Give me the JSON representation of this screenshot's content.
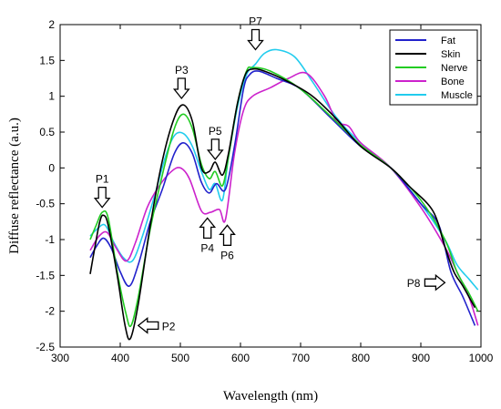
{
  "chart_data": {
    "type": "line",
    "title": "",
    "xlabel": "Wavelength (nm)",
    "ylabel": "Diffuse reflectance (a.u.)",
    "xlim": [
      300,
      1000
    ],
    "ylim": [
      -2.5,
      2
    ],
    "xticks": [
      "300",
      "400",
      "500",
      "600",
      "700",
      "800",
      "900",
      "1000"
    ],
    "yticks": [
      "-2.5",
      "-2",
      "-1.5",
      "-1",
      "-0.5",
      "0",
      "0.5",
      "1",
      "1.5",
      "2"
    ],
    "legend_position": "top-right",
    "grid": false,
    "series": [
      {
        "name": "Fat",
        "color": "#2222cc",
        "points": [
          [
            350,
            -1.25
          ],
          [
            360,
            -1.1
          ],
          [
            372,
            -0.98
          ],
          [
            385,
            -1.12
          ],
          [
            400,
            -1.45
          ],
          [
            415,
            -1.65
          ],
          [
            430,
            -1.35
          ],
          [
            450,
            -0.75
          ],
          [
            470,
            -0.3
          ],
          [
            490,
            0.2
          ],
          [
            505,
            0.35
          ],
          [
            520,
            0.2
          ],
          [
            535,
            -0.2
          ],
          [
            548,
            -0.35
          ],
          [
            560,
            -0.22
          ],
          [
            575,
            -0.3
          ],
          [
            590,
            0.3
          ],
          [
            605,
            1.1
          ],
          [
            615,
            1.3
          ],
          [
            630,
            1.35
          ],
          [
            660,
            1.25
          ],
          [
            700,
            1.1
          ],
          [
            750,
            0.7
          ],
          [
            800,
            0.3
          ],
          [
            850,
            0.0
          ],
          [
            900,
            -0.5
          ],
          [
            930,
            -0.8
          ],
          [
            950,
            -1.45
          ],
          [
            970,
            -1.8
          ],
          [
            990,
            -2.2
          ]
        ]
      },
      {
        "name": "Skin",
        "color": "#000000",
        "points": [
          [
            350,
            -1.48
          ],
          [
            358,
            -1.1
          ],
          [
            366,
            -0.75
          ],
          [
            372,
            -0.66
          ],
          [
            380,
            -0.8
          ],
          [
            395,
            -1.5
          ],
          [
            408,
            -2.2
          ],
          [
            417,
            -2.38
          ],
          [
            430,
            -1.9
          ],
          [
            450,
            -0.8
          ],
          [
            470,
            0.1
          ],
          [
            490,
            0.7
          ],
          [
            505,
            0.88
          ],
          [
            520,
            0.65
          ],
          [
            535,
            0.0
          ],
          [
            548,
            -0.05
          ],
          [
            558,
            0.08
          ],
          [
            570,
            -0.1
          ],
          [
            580,
            0.2
          ],
          [
            595,
            0.9
          ],
          [
            608,
            1.3
          ],
          [
            620,
            1.38
          ],
          [
            640,
            1.35
          ],
          [
            680,
            1.2
          ],
          [
            720,
            1.0
          ],
          [
            760,
            0.68
          ],
          [
            800,
            0.3
          ],
          [
            850,
            0.0
          ],
          [
            880,
            -0.25
          ],
          [
            920,
            -0.6
          ],
          [
            940,
            -1.1
          ],
          [
            955,
            -1.45
          ],
          [
            970,
            -1.65
          ],
          [
            990,
            -1.95
          ]
        ]
      },
      {
        "name": "Nerve",
        "color": "#22cc22",
        "points": [
          [
            350,
            -1.0
          ],
          [
            360,
            -0.8
          ],
          [
            370,
            -0.62
          ],
          [
            380,
            -0.7
          ],
          [
            395,
            -1.45
          ],
          [
            410,
            -2.05
          ],
          [
            418,
            -2.2
          ],
          [
            430,
            -1.8
          ],
          [
            450,
            -0.85
          ],
          [
            470,
            -0.1
          ],
          [
            490,
            0.55
          ],
          [
            505,
            0.75
          ],
          [
            520,
            0.55
          ],
          [
            535,
            0.05
          ],
          [
            548,
            -0.15
          ],
          [
            558,
            -0.05
          ],
          [
            570,
            -0.25
          ],
          [
            580,
            0.15
          ],
          [
            595,
            0.9
          ],
          [
            610,
            1.35
          ],
          [
            620,
            1.4
          ],
          [
            650,
            1.35
          ],
          [
            700,
            1.1
          ],
          [
            750,
            0.72
          ],
          [
            800,
            0.32
          ],
          [
            850,
            0.0
          ],
          [
            900,
            -0.45
          ],
          [
            940,
            -1.0
          ],
          [
            960,
            -1.45
          ],
          [
            980,
            -1.75
          ],
          [
            995,
            -2.0
          ]
        ]
      },
      {
        "name": "Bone",
        "color": "#cc22cc",
        "points": [
          [
            350,
            -1.15
          ],
          [
            365,
            -0.95
          ],
          [
            378,
            -0.9
          ],
          [
            392,
            -1.1
          ],
          [
            410,
            -1.3
          ],
          [
            425,
            -1.05
          ],
          [
            445,
            -0.55
          ],
          [
            465,
            -0.25
          ],
          [
            485,
            -0.05
          ],
          [
            500,
            0.0
          ],
          [
            515,
            -0.15
          ],
          [
            535,
            -0.6
          ],
          [
            550,
            -0.62
          ],
          [
            565,
            -0.58
          ],
          [
            575,
            -0.72
          ],
          [
            590,
            0.2
          ],
          [
            605,
            0.8
          ],
          [
            620,
            1.0
          ],
          [
            650,
            1.12
          ],
          [
            680,
            1.25
          ],
          [
            710,
            1.32
          ],
          [
            740,
            1.0
          ],
          [
            760,
            0.65
          ],
          [
            780,
            0.58
          ],
          [
            800,
            0.35
          ],
          [
            850,
            0.0
          ],
          [
            900,
            -0.55
          ],
          [
            940,
            -1.1
          ],
          [
            960,
            -1.45
          ],
          [
            980,
            -1.8
          ],
          [
            995,
            -2.2
          ]
        ]
      },
      {
        "name": "Muscle",
        "color": "#22ccee",
        "points": [
          [
            350,
            -0.95
          ],
          [
            362,
            -0.85
          ],
          [
            375,
            -0.8
          ],
          [
            390,
            -1.05
          ],
          [
            405,
            -1.25
          ],
          [
            420,
            -1.3
          ],
          [
            435,
            -1.0
          ],
          [
            455,
            -0.45
          ],
          [
            475,
            0.15
          ],
          [
            490,
            0.45
          ],
          [
            505,
            0.48
          ],
          [
            520,
            0.3
          ],
          [
            535,
            -0.05
          ],
          [
            548,
            -0.3
          ],
          [
            558,
            -0.22
          ],
          [
            570,
            -0.45
          ],
          [
            580,
            0.15
          ],
          [
            595,
            0.85
          ],
          [
            610,
            1.3
          ],
          [
            625,
            1.45
          ],
          [
            640,
            1.6
          ],
          [
            660,
            1.65
          ],
          [
            690,
            1.55
          ],
          [
            720,
            1.2
          ],
          [
            760,
            0.7
          ],
          [
            800,
            0.35
          ],
          [
            850,
            0.0
          ],
          [
            900,
            -0.5
          ],
          [
            940,
            -1.0
          ],
          [
            960,
            -1.35
          ],
          [
            980,
            -1.55
          ],
          [
            995,
            -1.7
          ]
        ]
      }
    ],
    "annotations": [
      {
        "label": "P1",
        "x": 370,
        "y": -0.55,
        "arrow": "down"
      },
      {
        "label": "P2",
        "x": 430,
        "y": -2.2,
        "arrow": "left"
      },
      {
        "label": "P3",
        "x": 502,
        "y": 0.97,
        "arrow": "down"
      },
      {
        "label": "P4",
        "x": 545,
        "y": -0.7,
        "arrow": "up"
      },
      {
        "label": "P5",
        "x": 558,
        "y": 0.12,
        "arrow": "down"
      },
      {
        "label": "P6",
        "x": 578,
        "y": -0.8,
        "arrow": "up"
      },
      {
        "label": "P7",
        "x": 625,
        "y": 1.65,
        "arrow": "down"
      },
      {
        "label": "P8",
        "x": 940,
        "y": -1.6,
        "arrow": "right"
      }
    ]
  }
}
